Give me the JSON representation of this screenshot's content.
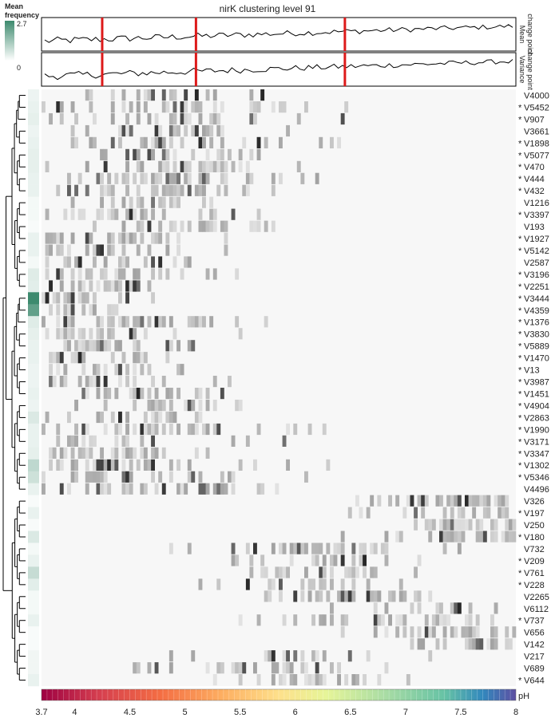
{
  "chart_data": {
    "type": "heatmap",
    "title": "nirK clustering level 91",
    "legend": {
      "title": "Mean frequency",
      "max_label": "2.7",
      "min_label": "0",
      "max_value": 2.7,
      "min_value": 0,
      "color_low": "#ffffff",
      "color_high": "#3d8a6e"
    },
    "change_point_panels": [
      {
        "label": "Mean change point"
      },
      {
        "label": "Variance change point"
      }
    ],
    "change_point_x_ph": [
      4.25,
      5.1,
      6.45
    ],
    "change_point_color": "#dd1a1a",
    "xaxis": {
      "label": "pH",
      "min": 3.7,
      "max": 8.0,
      "ticks": [
        {
          "value": 3.7,
          "label": "3.7"
        },
        {
          "value": 4.0,
          "label": "4"
        },
        {
          "value": 4.5,
          "label": "4.5"
        },
        {
          "value": 5.0,
          "label": "5"
        },
        {
          "value": 5.5,
          "label": "5.5"
        },
        {
          "value": 6.0,
          "label": "6"
        },
        {
          "value": 6.5,
          "label": "6.5"
        },
        {
          "value": 7.0,
          "label": "7"
        },
        {
          "value": 7.5,
          "label": "7.5"
        },
        {
          "value": 8.0,
          "label": "8"
        }
      ]
    },
    "rows": [
      {
        "name": "V4000",
        "star": false,
        "mean_freq": 0.25,
        "peak_ph": 4.9
      },
      {
        "name": "V5452",
        "star": true,
        "mean_freq": 0.3,
        "peak_ph": 4.95
      },
      {
        "name": "V907",
        "star": true,
        "mean_freq": 0.35,
        "peak_ph": 4.85
      },
      {
        "name": "V3661",
        "star": false,
        "mean_freq": 0.25,
        "peak_ph": 4.9
      },
      {
        "name": "V1898",
        "star": true,
        "mean_freq": 0.3,
        "peak_ph": 4.95
      },
      {
        "name": "V5077",
        "star": true,
        "mean_freq": 0.35,
        "peak_ph": 4.9
      },
      {
        "name": "V470",
        "star": true,
        "mean_freq": 0.35,
        "peak_ph": 5.05
      },
      {
        "name": "V444",
        "star": true,
        "mean_freq": 0.3,
        "peak_ph": 4.6
      },
      {
        "name": "V432",
        "star": true,
        "mean_freq": 0.3,
        "peak_ph": 4.5
      },
      {
        "name": "V1216",
        "star": false,
        "mean_freq": 0.15,
        "peak_ph": 4.6
      },
      {
        "name": "V3397",
        "star": true,
        "mean_freq": 0.15,
        "peak_ph": 4.5
      },
      {
        "name": "V193",
        "star": false,
        "mean_freq": 0.1,
        "peak_ph": 5.0
      },
      {
        "name": "V1927",
        "star": true,
        "mean_freq": 0.3,
        "peak_ph": 4.3
      },
      {
        "name": "V5142",
        "star": true,
        "mean_freq": 0.3,
        "peak_ph": 4.0
      },
      {
        "name": "V2587",
        "star": false,
        "mean_freq": 0.15,
        "peak_ph": 4.55
      },
      {
        "name": "V3196",
        "star": true,
        "mean_freq": 0.45,
        "peak_ph": 4.45
      },
      {
        "name": "V2251",
        "star": true,
        "mean_freq": 0.4,
        "peak_ph": 4.0
      },
      {
        "name": "V3444",
        "star": true,
        "mean_freq": 2.7,
        "peak_ph": 3.9
      },
      {
        "name": "V4359",
        "star": true,
        "mean_freq": 2.2,
        "peak_ph": 3.9
      },
      {
        "name": "V1376",
        "star": true,
        "mean_freq": 0.45,
        "peak_ph": 4.35
      },
      {
        "name": "V3830",
        "star": true,
        "mean_freq": 0.35,
        "peak_ph": 4.05
      },
      {
        "name": "V5889",
        "star": true,
        "mean_freq": 0.3,
        "peak_ph": 4.1
      },
      {
        "name": "V1470",
        "star": true,
        "mean_freq": 0.3,
        "peak_ph": 4.1
      },
      {
        "name": "V13",
        "star": true,
        "mean_freq": 0.25,
        "peak_ph": 4.2
      },
      {
        "name": "V3987",
        "star": true,
        "mean_freq": 0.25,
        "peak_ph": 4.15
      },
      {
        "name": "V1451",
        "star": true,
        "mean_freq": 0.3,
        "peak_ph": 4.5
      },
      {
        "name": "V4904",
        "star": true,
        "mean_freq": 0.25,
        "peak_ph": 4.75
      },
      {
        "name": "V2863",
        "star": true,
        "mean_freq": 0.5,
        "peak_ph": 4.4
      },
      {
        "name": "V1990",
        "star": true,
        "mean_freq": 0.3,
        "peak_ph": 4.55
      },
      {
        "name": "V3171",
        "star": true,
        "mean_freq": 0.3,
        "peak_ph": 4.15
      },
      {
        "name": "V3347",
        "star": true,
        "mean_freq": 0.35,
        "peak_ph": 4.2
      },
      {
        "name": "V1302",
        "star": true,
        "mean_freq": 0.9,
        "peak_ph": 4.45
      },
      {
        "name": "V5346",
        "star": true,
        "mean_freq": 0.7,
        "peak_ph": 4.55
      },
      {
        "name": "V4496",
        "star": false,
        "mean_freq": 0.3,
        "peak_ph": 4.55
      },
      {
        "name": "V326",
        "star": false,
        "mean_freq": 0.1,
        "peak_ph": 7.45
      },
      {
        "name": "V197",
        "star": true,
        "mean_freq": 0.3,
        "peak_ph": 7.5
      },
      {
        "name": "V250",
        "star": false,
        "mean_freq": 0.1,
        "peak_ph": 7.55
      },
      {
        "name": "V180",
        "star": true,
        "mean_freq": 0.5,
        "peak_ph": 7.55
      },
      {
        "name": "V732",
        "star": false,
        "mean_freq": 0.15,
        "peak_ph": 6.3
      },
      {
        "name": "V209",
        "star": true,
        "mean_freq": 0.3,
        "peak_ph": 6.35
      },
      {
        "name": "V761",
        "star": true,
        "mean_freq": 0.8,
        "peak_ph": 6.3
      },
      {
        "name": "V228",
        "star": true,
        "mean_freq": 0.4,
        "peak_ph": 6.1
      },
      {
        "name": "V2265",
        "star": false,
        "mean_freq": 0.15,
        "peak_ph": 6.55
      },
      {
        "name": "V6112",
        "star": false,
        "mean_freq": 0.15,
        "peak_ph": 7.2
      },
      {
        "name": "V737",
        "star": true,
        "mean_freq": 0.3,
        "peak_ph": 6.95
      },
      {
        "name": "V656",
        "star": false,
        "mean_freq": 0.1,
        "peak_ph": 7.6
      },
      {
        "name": "V142",
        "star": false,
        "mean_freq": 0.1,
        "peak_ph": 7.55
      },
      {
        "name": "V217",
        "star": false,
        "mean_freq": 0.2,
        "peak_ph": 5.85
      },
      {
        "name": "V689",
        "star": false,
        "mean_freq": 0.2,
        "peak_ph": 5.9
      },
      {
        "name": "V644",
        "star": true,
        "mean_freq": 0.3,
        "peak_ph": 6.1
      }
    ]
  }
}
